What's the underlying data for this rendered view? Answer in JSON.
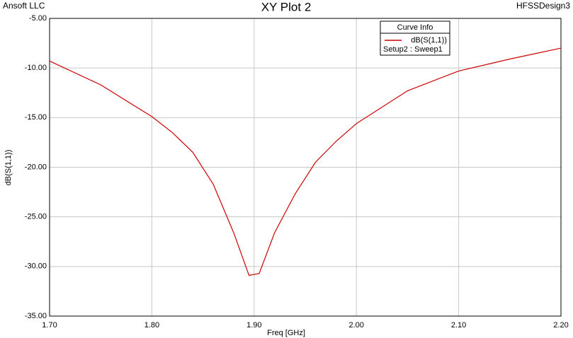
{
  "header": {
    "left": "Ansoft LLC",
    "right": "HFSSDesign3"
  },
  "chart_data": {
    "type": "line",
    "title": "XY Plot 2",
    "x_label": "Freq [GHz]",
    "y_label": "dB(S(1,1))",
    "x": [
      1.7,
      1.75,
      1.8,
      1.82,
      1.84,
      1.86,
      1.88,
      1.895,
      1.905,
      1.92,
      1.94,
      1.96,
      1.98,
      2.0,
      2.05,
      2.1,
      2.15,
      2.2
    ],
    "series": [
      {
        "name": "dB(S(1,1))",
        "color": "#cc0000",
        "values": [
          -9.3,
          -11.7,
          -14.9,
          -16.5,
          -18.5,
          -21.7,
          -26.6,
          -30.9,
          -30.7,
          -26.6,
          -22.7,
          -19.5,
          -17.4,
          -15.6,
          -12.3,
          -10.3,
          -9.1,
          -8.0
        ]
      }
    ],
    "legend_title": "Curve Info",
    "legend_note": "Setup2 : Sweep1",
    "legend_position": "upper-right",
    "xlim": [
      1.7,
      2.2
    ],
    "xticks": [
      {
        "value": 1.7,
        "label": "1.70"
      },
      {
        "value": 1.8,
        "label": "1.80"
      },
      {
        "value": 1.9,
        "label": "1.90"
      },
      {
        "value": 2.0,
        "label": "2.00"
      },
      {
        "value": 2.1,
        "label": "2.10"
      },
      {
        "value": 2.2,
        "label": "2.20"
      }
    ],
    "ylim": [
      -35,
      -5
    ],
    "yticks": [
      {
        "value": -35,
        "label": "-35.00"
      },
      {
        "value": -30,
        "label": "-30.00"
      },
      {
        "value": -25,
        "label": "-25.00"
      },
      {
        "value": -20,
        "label": "-20.00"
      },
      {
        "value": -15,
        "label": "-15.00"
      },
      {
        "value": -10,
        "label": "-10.00"
      },
      {
        "value": -5,
        "label": "-5.00"
      }
    ],
    "grid": true
  }
}
